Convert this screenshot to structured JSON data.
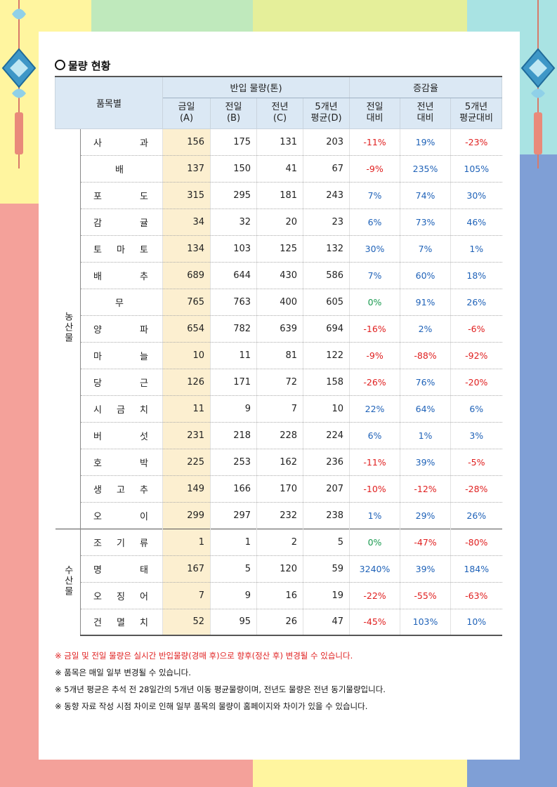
{
  "title": "물량 현황",
  "header": {
    "item_col": "품목별",
    "group1": "반입 물량(톤)",
    "group2": "증감율",
    "cols": [
      {
        "l1": "금일",
        "l2": "(A)"
      },
      {
        "l1": "전일",
        "l2": "(B)"
      },
      {
        "l1": "전년",
        "l2": "(C)"
      },
      {
        "l1": "5개년",
        "l2": "평균(D)"
      },
      {
        "l1": "전일",
        "l2": "대비"
      },
      {
        "l1": "전년",
        "l2": "대비"
      },
      {
        "l1": "5개년",
        "l2": "평균대비"
      }
    ]
  },
  "groups": [
    {
      "label": "농산물",
      "rows": [
        {
          "name": "사 과",
          "a": "156",
          "b": "175",
          "c": "131",
          "d": "203",
          "r1": "-11%",
          "r2": "19%",
          "r3": "-23%"
        },
        {
          "name": "배",
          "a": "137",
          "b": "150",
          "c": "41",
          "d": "67",
          "r1": "-9%",
          "r2": "235%",
          "r3": "105%"
        },
        {
          "name": "포 도",
          "a": "315",
          "b": "295",
          "c": "181",
          "d": "243",
          "r1": "7%",
          "r2": "74%",
          "r3": "30%"
        },
        {
          "name": "감 귤",
          "a": "34",
          "b": "32",
          "c": "20",
          "d": "23",
          "r1": "6%",
          "r2": "73%",
          "r3": "46%"
        },
        {
          "name": "토 마 토",
          "a": "134",
          "b": "103",
          "c": "125",
          "d": "132",
          "r1": "30%",
          "r2": "7%",
          "r3": "1%"
        },
        {
          "name": "배 추",
          "a": "689",
          "b": "644",
          "c": "430",
          "d": "586",
          "r1": "7%",
          "r2": "60%",
          "r3": "18%"
        },
        {
          "name": "무",
          "a": "765",
          "b": "763",
          "c": "400",
          "d": "605",
          "r1": "0%",
          "r2": "91%",
          "r3": "26%"
        },
        {
          "name": "양 파",
          "a": "654",
          "b": "782",
          "c": "639",
          "d": "694",
          "r1": "-16%",
          "r2": "2%",
          "r3": "-6%"
        },
        {
          "name": "마 늘",
          "a": "10",
          "b": "11",
          "c": "81",
          "d": "122",
          "r1": "-9%",
          "r2": "-88%",
          "r3": "-92%"
        },
        {
          "name": "당 근",
          "a": "126",
          "b": "171",
          "c": "72",
          "d": "158",
          "r1": "-26%",
          "r2": "76%",
          "r3": "-20%"
        },
        {
          "name": "시 금 치",
          "a": "11",
          "b": "9",
          "c": "7",
          "d": "10",
          "r1": "22%",
          "r2": "64%",
          "r3": "6%"
        },
        {
          "name": "버 섯",
          "a": "231",
          "b": "218",
          "c": "228",
          "d": "224",
          "r1": "6%",
          "r2": "1%",
          "r3": "3%"
        },
        {
          "name": "호 박",
          "a": "225",
          "b": "253",
          "c": "162",
          "d": "236",
          "r1": "-11%",
          "r2": "39%",
          "r3": "-5%"
        },
        {
          "name": "생 고 추",
          "a": "149",
          "b": "166",
          "c": "170",
          "d": "207",
          "r1": "-10%",
          "r2": "-12%",
          "r3": "-28%"
        },
        {
          "name": "오 이",
          "a": "299",
          "b": "297",
          "c": "232",
          "d": "238",
          "r1": "1%",
          "r2": "29%",
          "r3": "26%"
        }
      ]
    },
    {
      "label": "수산물",
      "rows": [
        {
          "name": "조 기 류",
          "a": "1",
          "b": "1",
          "c": "2",
          "d": "5",
          "r1": "0%",
          "r2": "-47%",
          "r3": "-80%"
        },
        {
          "name": "명 태",
          "a": "167",
          "b": "5",
          "c": "120",
          "d": "59",
          "r1": "3240%",
          "r2": "39%",
          "r3": "184%"
        },
        {
          "name": "오 징 어",
          "a": "7",
          "b": "9",
          "c": "16",
          "d": "19",
          "r1": "-22%",
          "r2": "-55%",
          "r3": "-63%"
        },
        {
          "name": "건 멸 치",
          "a": "52",
          "b": "95",
          "c": "26",
          "d": "47",
          "r1": "-45%",
          "r2": "103%",
          "r3": "10%"
        }
      ]
    }
  ],
  "notes": [
    "※ 금일 및 전일 물량은 실시간 반입물량(경매 후)으로 향후(정산 후) 변경될 수 있습니다.",
    "※ 품목은 매일 일부 변경될 수 있습니다.",
    "※ 5개년 평균은 추석 전 28일간의 5개년 이동 평균물량이며, 전년도 물량은 전년 동기물량입니다.",
    "※ 동향 자료 작성 시점 차이로 인해 일부 품목의 물량이 홈페이지와 차이가 있을 수 있습니다."
  ],
  "colors": {
    "negative": "#e02020",
    "positive": "#1f62b8",
    "zero": "#1a9a50",
    "highlight": "#fcefd0",
    "header_bg": "#dbe8f4"
  }
}
